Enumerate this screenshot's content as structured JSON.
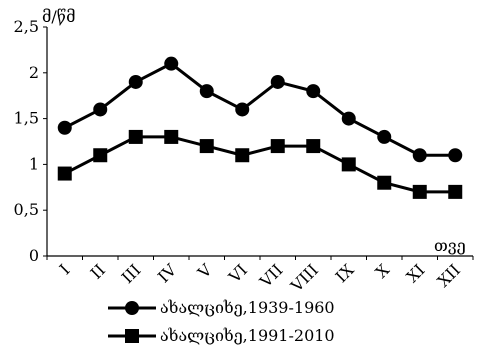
{
  "chart_data": {
    "type": "line",
    "categories": [
      "I",
      "II",
      "III",
      "IV",
      "V",
      "VI",
      "VII",
      "VIII",
      "IX",
      "X",
      "XI",
      "XII"
    ],
    "series": [
      {
        "name": "ახალციხე,1939-1960",
        "marker": "circle",
        "color": "#000000",
        "values": [
          1.4,
          1.6,
          1.9,
          2.1,
          1.8,
          1.6,
          1.9,
          1.8,
          1.5,
          1.3,
          1.1,
          1.1
        ]
      },
      {
        "name": "ახალციხე,1991-2010",
        "marker": "square",
        "color": "#000000",
        "values": [
          0.9,
          1.1,
          1.3,
          1.3,
          1.2,
          1.1,
          1.2,
          1.2,
          1.0,
          0.8,
          0.7,
          0.7
        ]
      }
    ],
    "y_unit": "მ/წმ",
    "x_unit": "თვე",
    "ylim": [
      0,
      2.5
    ],
    "yticks": [
      "0",
      "0,5",
      "1",
      "1,5",
      "2",
      "2,5"
    ],
    "grid": false,
    "legend_position": "bottom"
  }
}
